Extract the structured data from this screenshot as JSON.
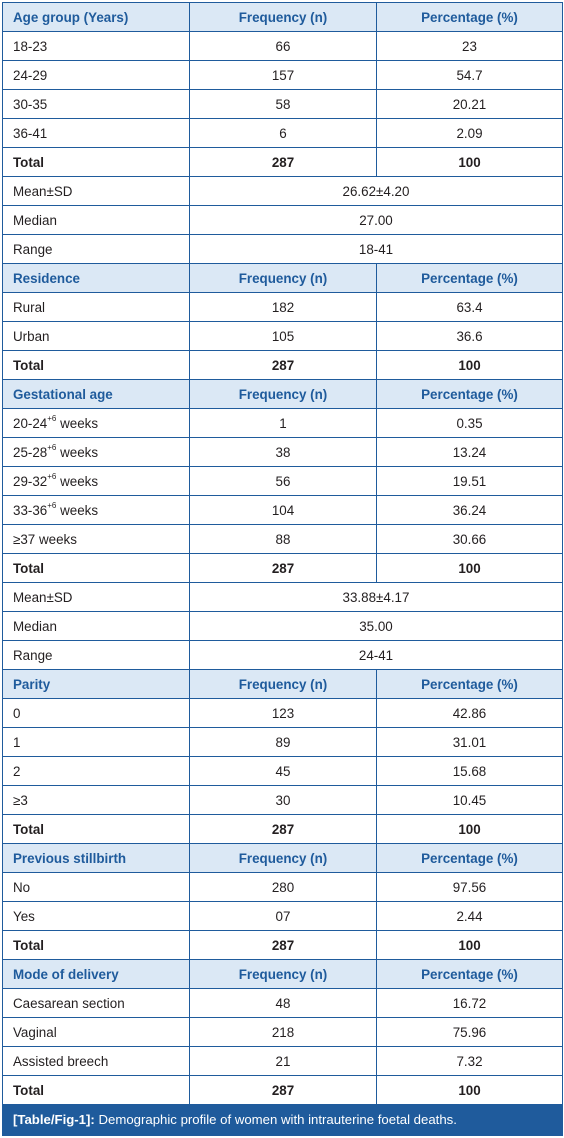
{
  "sections": [
    {
      "id": "age",
      "header": [
        "Age group (Years)",
        "Frequency (n)",
        "Percentage (%)"
      ],
      "rows": [
        {
          "label": "18-23",
          "n": "66",
          "pct": "23"
        },
        {
          "label": "24-29",
          "n": "157",
          "pct": "54.7"
        },
        {
          "label": "30-35",
          "n": "58",
          "pct": "20.21"
        },
        {
          "label": "36-41",
          "n": "6",
          "pct": "2.09"
        }
      ],
      "total": {
        "label": "Total",
        "n": "287",
        "pct": "100"
      },
      "stats": [
        {
          "label": "Mean±SD",
          "value": "26.62±4.20"
        },
        {
          "label": "Median",
          "value": "27.00"
        },
        {
          "label": "Range",
          "value": "18-41"
        }
      ]
    },
    {
      "id": "residence",
      "header": [
        "Residence",
        "Frequency (n)",
        "Percentage (%)"
      ],
      "rows": [
        {
          "label": "Rural",
          "n": "182",
          "pct": "63.4"
        },
        {
          "label": "Urban",
          "n": "105",
          "pct": "36.6"
        }
      ],
      "total": {
        "label": "Total",
        "n": "287",
        "pct": "100"
      },
      "stats": []
    },
    {
      "id": "gestational",
      "header": [
        "Gestational age",
        "Frequency (n)",
        "Percentage (%)"
      ],
      "rows": [
        {
          "label": "20-24",
          "sup": "+6",
          "suffix": " weeks",
          "n": "1",
          "pct": "0.35"
        },
        {
          "label": "25-28",
          "sup": "+6",
          "suffix": " weeks",
          "n": "38",
          "pct": "13.24"
        },
        {
          "label": "29-32",
          "sup": "+6",
          "suffix": " weeks",
          "n": "56",
          "pct": "19.51"
        },
        {
          "label": "33-36",
          "sup": "+6",
          "suffix": " weeks",
          "n": "104",
          "pct": "36.24"
        },
        {
          "label": "≥37 weeks",
          "n": "88",
          "pct": "30.66"
        }
      ],
      "total": {
        "label": "Total",
        "n": "287",
        "pct": "100"
      },
      "stats": [
        {
          "label": "Mean±SD",
          "value": "33.88±4.17"
        },
        {
          "label": "Median",
          "value": "35.00"
        },
        {
          "label": "Range",
          "value": "24-41"
        }
      ]
    },
    {
      "id": "parity",
      "header": [
        "Parity",
        "Frequency (n)",
        "Percentage (%)"
      ],
      "rows": [
        {
          "label": "0",
          "n": "123",
          "pct": "42.86"
        },
        {
          "label": "1",
          "n": "89",
          "pct": "31.01"
        },
        {
          "label": "2",
          "n": "45",
          "pct": "15.68"
        },
        {
          "label": "≥3",
          "n": "30",
          "pct": "10.45"
        }
      ],
      "total": {
        "label": "Total",
        "n": "287",
        "pct": "100"
      },
      "stats": []
    },
    {
      "id": "stillbirth",
      "header": [
        "Previous stillbirth",
        "Frequency (n)",
        "Percentage (%)"
      ],
      "rows": [
        {
          "label": "No",
          "n": "280",
          "pct": "97.56"
        },
        {
          "label": "Yes",
          "n": "07",
          "pct": "2.44"
        }
      ],
      "total": {
        "label": "Total",
        "n": "287",
        "pct": "100"
      },
      "stats": []
    },
    {
      "id": "delivery",
      "header": [
        "Mode of delivery",
        "Frequency (n)",
        "Percentage (%)"
      ],
      "rows": [
        {
          "label": "Caesarean section",
          "n": "48",
          "pct": "16.72"
        },
        {
          "label": "Vaginal",
          "n": "218",
          "pct": "75.96"
        },
        {
          "label": "Assisted breech",
          "n": "21",
          "pct": "7.32"
        }
      ],
      "total": {
        "label": "Total",
        "n": "287",
        "pct": "100"
      },
      "stats": []
    }
  ],
  "caption": {
    "ref": "[Table/Fig-1]:",
    "text": " Demographic profile of women with intrauterine foetal deaths."
  },
  "colors": {
    "accent": "#1f5b9c",
    "header_bg": "#dbe8f5"
  }
}
